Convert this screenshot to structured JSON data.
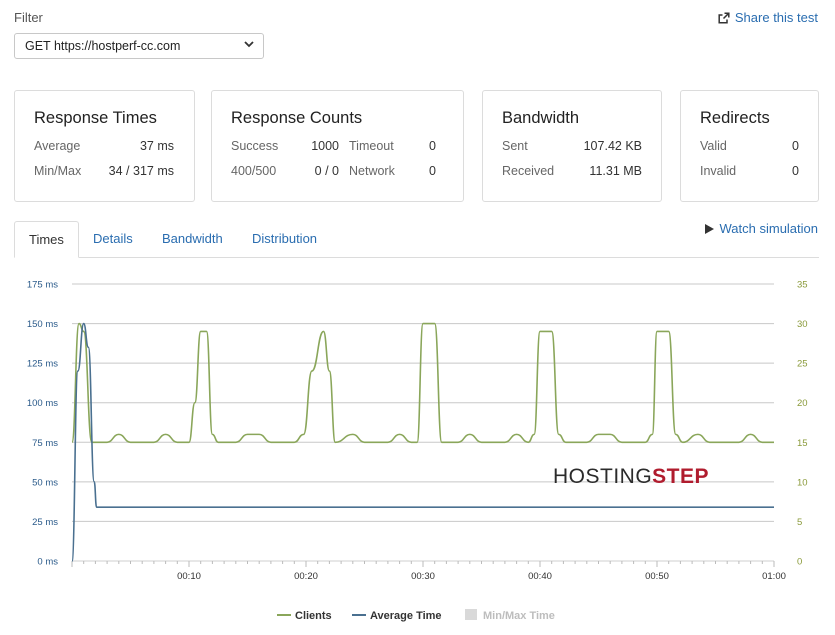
{
  "filter": {
    "label": "Filter",
    "selected": "GET https://hostperf-cc.com"
  },
  "share": {
    "label": "Share this test",
    "icon": "share-icon"
  },
  "cards": [
    {
      "title": "Response Times",
      "rows": [
        {
          "label": "Average",
          "value": "37 ms"
        },
        {
          "label": "Min/Max",
          "value": "34 / 317 ms"
        }
      ]
    },
    {
      "title": "Response Counts",
      "rows": [
        {
          "label": "Success",
          "value": "1000",
          "label2": "Timeout",
          "value2": "0"
        },
        {
          "label": "400/500",
          "value": "0 / 0",
          "label2": "Network",
          "value2": "0"
        }
      ]
    },
    {
      "title": "Bandwidth",
      "rows": [
        {
          "label": "Sent",
          "value": "107.42 KB"
        },
        {
          "label": "Received",
          "value": "11.31 MB"
        }
      ]
    },
    {
      "title": "Redirects",
      "rows": [
        {
          "label": "Valid",
          "value": "0"
        },
        {
          "label": "Invalid",
          "value": "0"
        }
      ]
    }
  ],
  "tabs": [
    "Times",
    "Details",
    "Bandwidth",
    "Distribution"
  ],
  "watch": {
    "label": "Watch simulation",
    "icon": "play-icon"
  },
  "logo": {
    "part1": "HOSTING",
    "part2": "STEP"
  },
  "chart_data": {
    "type": "line",
    "x_ticks": [
      "00:10",
      "00:20",
      "00:30",
      "00:40",
      "00:50",
      "01:00"
    ],
    "y_left_ticks": [
      "0 ms",
      "25 ms",
      "50 ms",
      "75 ms",
      "100 ms",
      "125 ms",
      "150 ms",
      "175 ms"
    ],
    "y_right_ticks": [
      "0",
      "5",
      "10",
      "15",
      "20",
      "25",
      "30",
      "35"
    ],
    "ylim_left": [
      0,
      175
    ],
    "ylim_right": [
      0,
      35
    ],
    "xlim": [
      0,
      60
    ],
    "grid": true,
    "legend": "bottom",
    "series": [
      {
        "name": "Clients",
        "axis": "right",
        "color": "#8aa65a",
        "points": [
          [
            0,
            15
          ],
          [
            0.6,
            30
          ],
          [
            1,
            29
          ],
          [
            1.7,
            15
          ],
          [
            3,
            15
          ],
          [
            4,
            16
          ],
          [
            5,
            15
          ],
          [
            7,
            15
          ],
          [
            8,
            16
          ],
          [
            9,
            15
          ],
          [
            10,
            15
          ],
          [
            10.5,
            20
          ],
          [
            11,
            29
          ],
          [
            11.5,
            29
          ],
          [
            12,
            16
          ],
          [
            12.5,
            15
          ],
          [
            14,
            15
          ],
          [
            15,
            16
          ],
          [
            16,
            16
          ],
          [
            17,
            15
          ],
          [
            19,
            15
          ],
          [
            19.8,
            16
          ],
          [
            20.5,
            24
          ],
          [
            21.5,
            29
          ],
          [
            22,
            24
          ],
          [
            22.5,
            15
          ],
          [
            24,
            16
          ],
          [
            25,
            15
          ],
          [
            27,
            15
          ],
          [
            28,
            16
          ],
          [
            29,
            15
          ],
          [
            29.5,
            15
          ],
          [
            30,
            30
          ],
          [
            31,
            30
          ],
          [
            31.6,
            15
          ],
          [
            33,
            15
          ],
          [
            34,
            16
          ],
          [
            35,
            15
          ],
          [
            37,
            15
          ],
          [
            38,
            16
          ],
          [
            39,
            15
          ],
          [
            39.5,
            16
          ],
          [
            40,
            29
          ],
          [
            41,
            29
          ],
          [
            41.6,
            16
          ],
          [
            42.2,
            15
          ],
          [
            44,
            15
          ],
          [
            45,
            16
          ],
          [
            46,
            16
          ],
          [
            47,
            15
          ],
          [
            49,
            15
          ],
          [
            49.6,
            16
          ],
          [
            50,
            29
          ],
          [
            51,
            29
          ],
          [
            51.6,
            16
          ],
          [
            52.2,
            15
          ],
          [
            53.5,
            16
          ],
          [
            54.5,
            15
          ],
          [
            57,
            15
          ],
          [
            58,
            16
          ],
          [
            59,
            15
          ],
          [
            60,
            15
          ]
        ]
      },
      {
        "name": "Average Time",
        "axis": "left",
        "color": "#4a7090",
        "points": [
          [
            0,
            0
          ],
          [
            0.5,
            120
          ],
          [
            1,
            150
          ],
          [
            1.4,
            135
          ],
          [
            1.9,
            50
          ],
          [
            2.1,
            34
          ],
          [
            60,
            34
          ]
        ]
      },
      {
        "name": "Min/Max Time",
        "axis": "left",
        "color": "#d9d9d9",
        "points": []
      }
    ]
  }
}
